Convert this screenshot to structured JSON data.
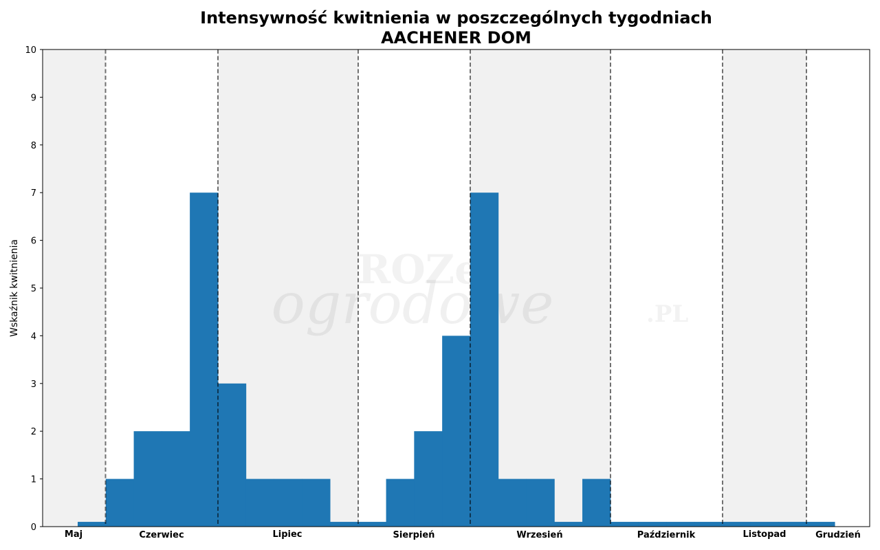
{
  "chart_data": {
    "type": "bar",
    "title": "Intensywność kwitnienia w poszczególnych tygodniach",
    "subtitle": "AACHENER DOM",
    "xlabel": "",
    "ylabel": "Wskaźnik kwitnienia",
    "ylim": [
      0,
      10
    ],
    "yticks": [
      0,
      1,
      2,
      3,
      4,
      5,
      6,
      7,
      8,
      9,
      10
    ],
    "grid": false,
    "legend": null,
    "bar_color": "#1f77b4",
    "week_values": [
      0.1,
      1,
      2,
      2,
      7,
      3,
      1,
      1,
      1,
      0.1,
      0.1,
      1,
      2,
      4,
      7,
      1,
      1,
      0.1,
      1,
      0.1,
      0.1,
      0.1,
      0.1,
      0.1,
      0.1,
      0.1,
      0.1
    ],
    "months": [
      {
        "label": "Maj",
        "shaded": true
      },
      {
        "label": "Czerwiec",
        "shaded": false
      },
      {
        "label": "Lipiec",
        "shaded": true
      },
      {
        "label": "Sierpień",
        "shaded": false
      },
      {
        "label": "Wrzesień",
        "shaded": true
      },
      {
        "label": "Październik",
        "shaded": false
      },
      {
        "label": "Listopad",
        "shaded": true
      },
      {
        "label": "Grudzień",
        "shaded": false
      }
    ],
    "watermark": "ROZE ogrodowe .PL"
  }
}
